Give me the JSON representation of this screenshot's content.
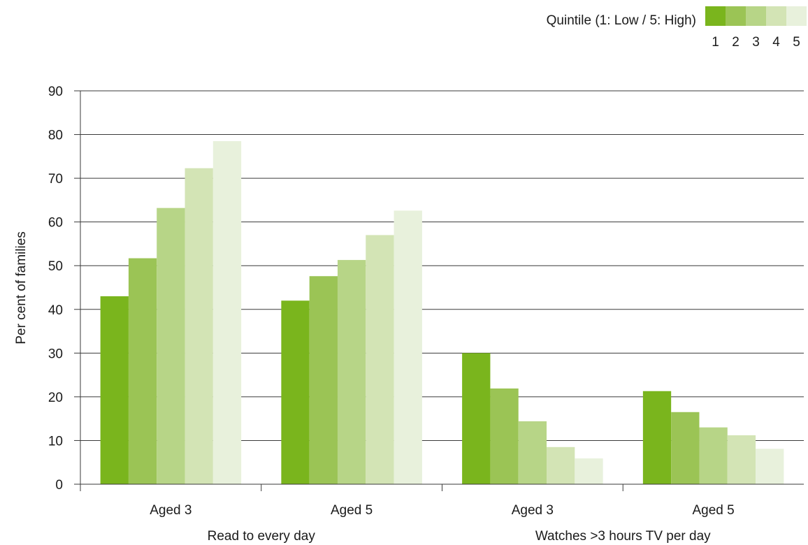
{
  "legend": {
    "title": "Quintile (1: Low / 5: High)",
    "labels": [
      "1",
      "2",
      "3",
      "4",
      "5"
    ]
  },
  "colors": [
    "#7ab51d",
    "#9bc455",
    "#b7d587",
    "#d3e4b5",
    "#e8f1dc"
  ],
  "chart_data": {
    "type": "bar",
    "ylabel": "Per cent of families",
    "ylim": [
      0,
      90
    ],
    "yticks": [
      0,
      10,
      20,
      30,
      40,
      50,
      60,
      70,
      80,
      90
    ],
    "grid": true,
    "legend_position": "top-right",
    "categories": [
      "Aged 3",
      "Aged 5",
      "Aged 3",
      "Aged 5"
    ],
    "groups": [
      {
        "label": "Read to every day",
        "categories": [
          "Aged 3",
          "Aged 5"
        ]
      },
      {
        "label": "Watches >3 hours TV per day",
        "categories": [
          "Aged 3",
          "Aged 5"
        ]
      }
    ],
    "series": [
      {
        "name": "1",
        "values": [
          43,
          42,
          30,
          21.3
        ]
      },
      {
        "name": "2",
        "values": [
          51.7,
          47.6,
          21.9,
          16.5
        ]
      },
      {
        "name": "3",
        "values": [
          63.2,
          51.3,
          14.4,
          13
        ]
      },
      {
        "name": "4",
        "values": [
          72.3,
          57,
          8.5,
          11.2
        ]
      },
      {
        "name": "5",
        "values": [
          78.5,
          62.6,
          5.9,
          8.1
        ]
      }
    ]
  }
}
